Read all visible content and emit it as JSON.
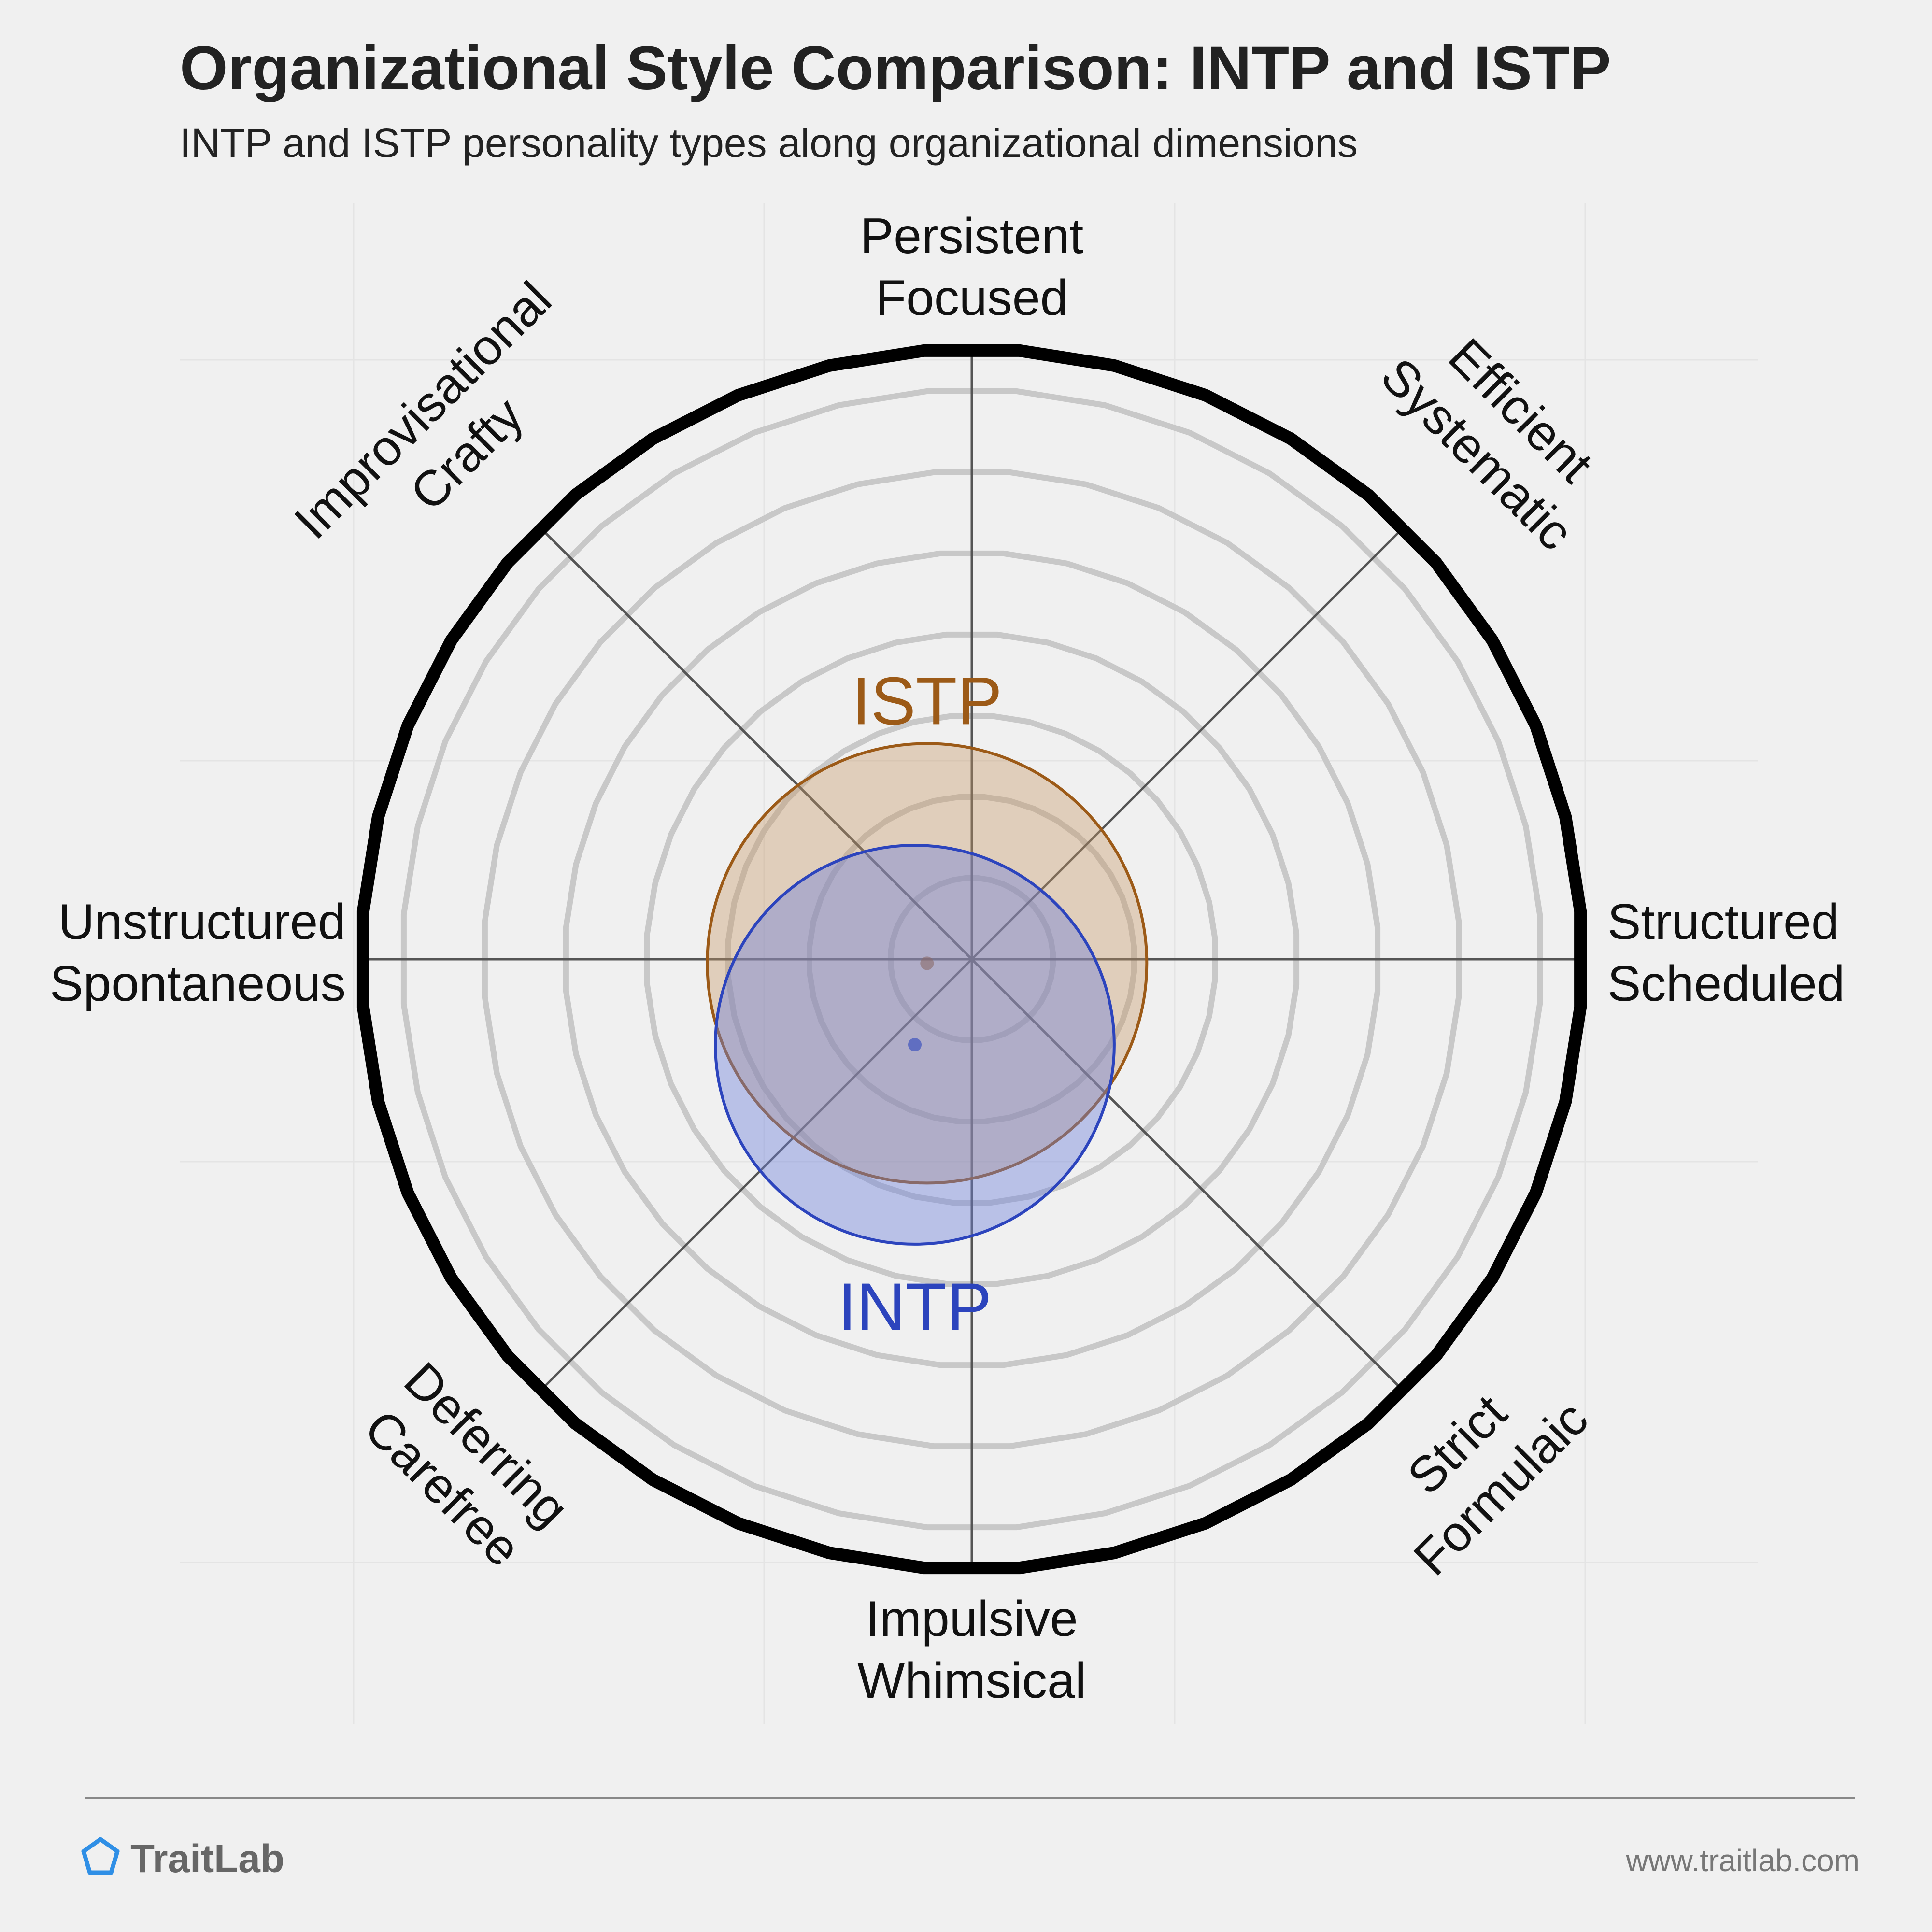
{
  "chart_data": {
    "type": "polar-position",
    "title": "Organizational Style Comparison: INTP and ISTP",
    "subtitle": "INTP and ISTP personality types along organizational dimensions",
    "axes": [
      {
        "angle_deg": 90,
        "lines": [
          "Persistent",
          "Focused"
        ]
      },
      {
        "angle_deg": 45,
        "lines": [
          "Efficient",
          "Systematic"
        ]
      },
      {
        "angle_deg": 0,
        "lines": [
          "Structured",
          "Scheduled"
        ]
      },
      {
        "angle_deg": -45,
        "lines": [
          "Strict",
          "Formulaic"
        ]
      },
      {
        "angle_deg": -90,
        "lines": [
          "Impulsive",
          "Whimsical"
        ]
      },
      {
        "angle_deg": -135,
        "lines": [
          "Deferring",
          "Carefree"
        ]
      },
      {
        "angle_deg": 180,
        "lines": [
          "Unstructured",
          "Spontaneous"
        ]
      },
      {
        "angle_deg": 135,
        "lines": [
          "Improvisational",
          "Crafty"
        ]
      }
    ],
    "rings": [
      0.2,
      0.4,
      0.6,
      0.8,
      1.0,
      1.2,
      1.4
    ],
    "outer_radius": 1.5,
    "types": [
      {
        "name": "ISTP",
        "x": -0.11,
        "y": -0.01,
        "spread": 0.54,
        "color": "#9c5a17",
        "fill": "rgba(196,150,100,0.38)",
        "label_pos": "above"
      },
      {
        "name": "INTP",
        "x": -0.14,
        "y": -0.21,
        "spread": 0.49,
        "color": "#2c44bd",
        "fill": "rgba(110,128,220,0.42)",
        "label_pos": "below"
      }
    ]
  },
  "footer": {
    "brand": "TraitLab",
    "url": "www.traitlab.com"
  }
}
